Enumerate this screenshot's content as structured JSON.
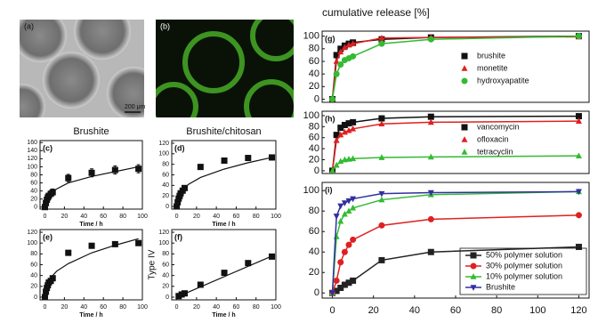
{
  "images": [
    {
      "label": "(a)",
      "scale": "200 μm"
    },
    {
      "label": "(b)"
    }
  ],
  "chart_data": [
    {
      "type": "scatter",
      "label": "(c)",
      "title": "Brushite",
      "xlabel": "Time / h",
      "x": [
        0,
        1,
        2,
        3,
        4,
        6,
        8,
        24,
        48,
        72,
        96
      ],
      "series": [
        {
          "color": "#111111",
          "marker": "square",
          "values": [
            0,
            10,
            18,
            24,
            28,
            33,
            37,
            72,
            85,
            92,
            95
          ],
          "errors": [
            2,
            4,
            5,
            6,
            6,
            7,
            8,
            9,
            10,
            10,
            10
          ]
        }
      ],
      "fit": {
        "x": [
          0,
          1,
          3,
          6,
          12,
          24,
          48,
          72,
          96
        ],
        "values": [
          0,
          15,
          26,
          34,
          45,
          60,
          76,
          88,
          100
        ]
      },
      "xlim": [
        -5,
        100
      ],
      "xticks": [
        0,
        20,
        40,
        60,
        80,
        100
      ],
      "ylim": [
        -5,
        165
      ],
      "yticks": [
        0,
        20,
        40,
        60,
        80,
        100,
        120,
        140,
        160
      ]
    },
    {
      "type": "scatter",
      "label": "(d)",
      "title": "Brushite/chitosan",
      "xlabel": "Time / h",
      "x": [
        0,
        1,
        2,
        3,
        4,
        6,
        8,
        24,
        48,
        72,
        96
      ],
      "series": [
        {
          "color": "#111111",
          "marker": "square",
          "values": [
            0,
            8,
            15,
            20,
            25,
            30,
            35,
            75,
            87,
            92,
            93
          ],
          "errors": [
            1,
            2,
            3,
            3,
            3,
            3,
            3,
            3,
            4,
            4,
            5
          ]
        }
      ],
      "fit": {
        "x": [
          0,
          1,
          3,
          6,
          12,
          24,
          48,
          72,
          96
        ],
        "values": [
          0,
          14,
          24,
          32,
          42,
          55,
          71,
          83,
          93
        ]
      },
      "xlim": [
        -5,
        100
      ],
      "xticks": [
        0,
        20,
        40,
        60,
        80,
        100
      ],
      "ylim": [
        -5,
        125
      ],
      "yticks": [
        0,
        20,
        40,
        60,
        80,
        100,
        120
      ]
    },
    {
      "type": "scatter",
      "label": "(e)",
      "xlabel": "Time / h",
      "x": [
        0,
        1,
        2,
        3,
        4,
        6,
        8,
        24,
        48,
        72,
        96
      ],
      "series": [
        {
          "color": "#111111",
          "marker": "square",
          "values": [
            0,
            10,
            17,
            22,
            27,
            30,
            35,
            82,
            95,
            98,
            100
          ]
        }
      ],
      "fit": {
        "x": [
          0,
          1,
          3,
          6,
          12,
          24,
          48,
          72,
          96
        ],
        "values": [
          0,
          17,
          27,
          36,
          48,
          62,
          82,
          96,
          108
        ]
      },
      "xlim": [
        -5,
        100
      ],
      "xticks": [
        0,
        20,
        40,
        60,
        80,
        100
      ],
      "ylim": [
        -5,
        125
      ],
      "yticks": [
        0,
        20,
        40,
        60,
        80,
        100,
        120
      ]
    },
    {
      "type": "scatter",
      "label": "(f)",
      "xlabel": "Time / h",
      "ylabel": "Type IV",
      "x": [
        2,
        5,
        8,
        24,
        48,
        72,
        96
      ],
      "series": [
        {
          "color": "#111111",
          "marker": "square",
          "values": [
            2,
            5,
            7,
            23,
            45,
            63,
            75
          ]
        }
      ],
      "fit": {
        "x": [
          0,
          96
        ],
        "values": [
          0,
          76
        ]
      },
      "xlim": [
        -5,
        100
      ],
      "xticks": [
        0,
        20,
        40,
        60,
        80,
        100
      ],
      "ylim": [
        -5,
        125
      ],
      "yticks": [
        0,
        20,
        40,
        60,
        80,
        100,
        120
      ]
    },
    {
      "type": "line",
      "label": "(g)",
      "ylabel": "cumulative release [%]",
      "legend": "right",
      "x": [
        0,
        2,
        4,
        6,
        8,
        10,
        24,
        48,
        120
      ],
      "series": [
        {
          "name": "brushite",
          "color": "#111111",
          "marker": "square",
          "values": [
            0,
            70,
            80,
            85,
            88,
            90,
            95,
            98,
            100
          ]
        },
        {
          "name": "monetite",
          "color": "#e02020",
          "marker": "triangle",
          "values": [
            0,
            60,
            75,
            82,
            86,
            88,
            97,
            98,
            99
          ]
        },
        {
          "name": "hydroxyapatite",
          "color": "#33bb33",
          "marker": "circle",
          "values": [
            0,
            40,
            55,
            62,
            65,
            68,
            88,
            95,
            100
          ]
        }
      ],
      "xlim": [
        -5,
        125
      ],
      "ylim": [
        -5,
        108
      ],
      "yticks": [
        0,
        20,
        40,
        60,
        80,
        100
      ]
    },
    {
      "type": "line",
      "label": "(h)",
      "legend": "right",
      "x": [
        0,
        2,
        4,
        6,
        8,
        10,
        24,
        48,
        120
      ],
      "series": [
        {
          "name": "vancomycin",
          "color": "#111111",
          "marker": "square",
          "values": [
            0,
            65,
            78,
            83,
            86,
            88,
            95,
            98,
            99
          ]
        },
        {
          "name": "ofloxacin",
          "color": "#e02020",
          "marker": "triangle",
          "values": [
            0,
            55,
            65,
            70,
            73,
            76,
            85,
            88,
            90
          ]
        },
        {
          "name": "tetracyclin",
          "color": "#33bb33",
          "marker": "triangle",
          "values": [
            0,
            10,
            17,
            20,
            21,
            22,
            24,
            25,
            27
          ]
        }
      ],
      "xlim": [
        -5,
        125
      ],
      "ylim": [
        -5,
        108
      ],
      "yticks": [
        0,
        20,
        40,
        60,
        80,
        100
      ]
    },
    {
      "type": "line",
      "label": "(i)",
      "legend": "lower right",
      "x": [
        0,
        2,
        4,
        6,
        8,
        10,
        24,
        48,
        120
      ],
      "series": [
        {
          "name": "50% polymer solution",
          "color": "#222222",
          "marker": "square",
          "values": [
            0,
            2,
            5,
            8,
            10,
            12,
            32,
            40,
            45
          ]
        },
        {
          "name": "30% polymer solution",
          "color": "#e02020",
          "marker": "circle",
          "values": [
            0,
            12,
            30,
            40,
            47,
            52,
            66,
            72,
            76
          ]
        },
        {
          "name": "10% polymer solution",
          "color": "#33bb33",
          "marker": "triangle",
          "values": [
            0,
            55,
            70,
            77,
            80,
            83,
            91,
            96,
            99
          ]
        },
        {
          "name": "Brushite",
          "color": "#3030a0",
          "marker": "down",
          "values": [
            0,
            75,
            85,
            88,
            90,
            92,
            97,
            98,
            99
          ]
        }
      ],
      "xlim": [
        -5,
        125
      ],
      "xticks": [
        0,
        20,
        40,
        60,
        80,
        100,
        120
      ],
      "ylim": [
        -5,
        108
      ],
      "yticks": [
        0,
        20,
        40,
        60,
        80,
        100
      ]
    }
  ]
}
